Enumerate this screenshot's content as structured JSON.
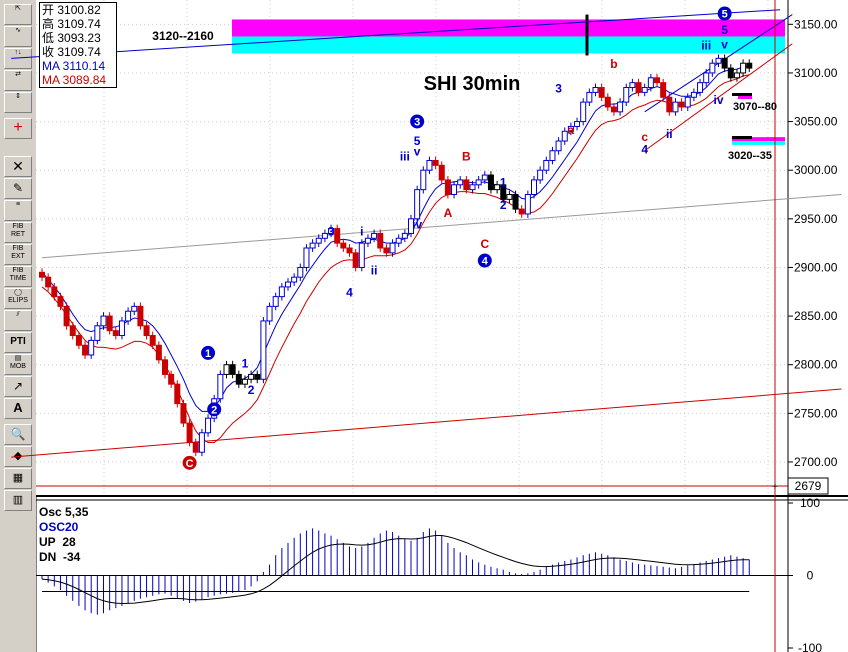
{
  "chart_data": {
    "type": "candlestick",
    "title": "SHI 30min",
    "price_axis": {
      "ticks": [
        2700,
        2750,
        2800,
        2850,
        2900,
        2950,
        3000,
        3050,
        3100,
        3150
      ],
      "tick_labels": [
        "2700.00",
        "2750.00",
        "2800.00",
        "2850.00",
        "2900.00",
        "2950.00",
        "3000.00",
        "3050.00",
        "3100.00",
        "3150.00"
      ],
      "ylim": [
        2665,
        3175
      ],
      "crosshair_label": "2679"
    },
    "ohlc_panel": {
      "open_label": "开",
      "open": "3100.82",
      "high_label": "高",
      "high": "3109.74",
      "low_label": "低",
      "low": "3093.23",
      "close_label": "收",
      "close": "3109.74",
      "ma1_label": "MA 3110.14",
      "ma2_label": "MA 3089.84"
    },
    "colors": {
      "up": "#0000cc",
      "down": "#cc0000",
      "highlight": "#000000",
      "ma_fast": "#0000cc",
      "ma_slow": "#cc0000",
      "osc": "#0000cc",
      "magenta": "#ff00ff",
      "cyan": "#00ffff"
    },
    "closes": [
      2890,
      2880,
      2870,
      2860,
      2840,
      2830,
      2820,
      2810,
      2825,
      2840,
      2850,
      2835,
      2830,
      2845,
      2855,
      2860,
      2840,
      2830,
      2820,
      2805,
      2790,
      2780,
      2760,
      2740,
      2720,
      2710,
      2730,
      2745,
      2765,
      2790,
      2800,
      2790,
      2780,
      2785,
      2790,
      2785,
      2845,
      2860,
      2870,
      2880,
      2885,
      2890,
      2900,
      2920,
      2925,
      2930,
      2935,
      2940,
      2925,
      2920,
      2915,
      2900,
      2925,
      2930,
      2935,
      2920,
      2915,
      2925,
      2930,
      2935,
      2950,
      2980,
      3000,
      3010,
      3005,
      2990,
      2975,
      2985,
      2990,
      2980,
      2985,
      2990,
      2995,
      2980,
      2985,
      2970,
      2975,
      2960,
      2955,
      2975,
      2990,
      3000,
      3010,
      3020,
      3030,
      3040,
      3045,
      3050,
      3070,
      3080,
      3085,
      3075,
      3065,
      3060,
      3070,
      3085,
      3090,
      3080,
      3085,
      3095,
      3090,
      3075,
      3060,
      3070,
      3065,
      3075,
      3080,
      3090,
      3100,
      3110,
      3115,
      3105,
      3095,
      3100,
      3110,
      3105
    ],
    "ma_fast": [
      2895,
      2888,
      2880,
      2872,
      2862,
      2852,
      2843,
      2836,
      2834,
      2836,
      2838,
      2838,
      2839,
      2841,
      2845,
      2848,
      2847,
      2845,
      2840,
      2832,
      2822,
      2810,
      2798,
      2785,
      2770,
      2758,
      2752,
      2752,
      2756,
      2765,
      2776,
      2782,
      2784,
      2786,
      2790,
      2797,
      2811,
      2826,
      2840,
      2852,
      2862,
      2872,
      2882,
      2893,
      2902,
      2911,
      2919,
      2926,
      2928,
      2929,
      2928,
      2925,
      2926,
      2928,
      2929,
      2927,
      2925,
      2925,
      2927,
      2930,
      2936,
      2947,
      2960,
      2972,
      2981,
      2986,
      2987,
      2988,
      2989,
      2988,
      2987,
      2987,
      2988,
      2986,
      2985,
      2982,
      2980,
      2976,
      2971,
      2970,
      2973,
      2978,
      2985,
      2993,
      3002,
      3011,
      3020,
      3029,
      3040,
      3051,
      3061,
      3066,
      3068,
      3068,
      3069,
      3073,
      3078,
      3080,
      3081,
      3084,
      3086,
      3084,
      3080,
      3078,
      3076,
      3076,
      3077,
      3080,
      3085,
      3092,
      3099,
      3102,
      3103,
      3104,
      3106,
      3107
    ],
    "ma_slow": [
      2880,
      2875,
      2868,
      2860,
      2851,
      2842,
      2833,
      2825,
      2820,
      2818,
      2818,
      2817,
      2816,
      2818,
      2821,
      2824,
      2824,
      2822,
      2818,
      2810,
      2800,
      2788,
      2775,
      2760,
      2745,
      2732,
      2724,
      2720,
      2720,
      2725,
      2733,
      2740,
      2745,
      2750,
      2756,
      2764,
      2777,
      2791,
      2805,
      2818,
      2830,
      2842,
      2853,
      2865,
      2875,
      2885,
      2893,
      2900,
      2904,
      2907,
      2908,
      2907,
      2908,
      2910,
      2912,
      2912,
      2912,
      2913,
      2915,
      2918,
      2924,
      2934,
      2946,
      2957,
      2966,
      2972,
      2975,
      2977,
      2978,
      2978,
      2977,
      2976,
      2976,
      2974,
      2972,
      2969,
      2966,
      2962,
      2958,
      2956,
      2957,
      2961,
      2968,
      2976,
      2985,
      2994,
      3003,
      3012,
      3022,
      3032,
      3041,
      3047,
      3050,
      3051,
      3053,
      3057,
      3062,
      3065,
      3067,
      3070,
      3072,
      3071,
      3069,
      3067,
      3066,
      3066,
      3067,
      3070,
      3074,
      3080,
      3086,
      3090,
      3092,
      3094,
      3097,
      3098
    ],
    "wave_labels": [
      {
        "text": "C",
        "price": 2695,
        "i": 24,
        "color": "#cc0000",
        "circled": true
      },
      {
        "text": "1",
        "price": 2808,
        "i": 27,
        "color": "#0000cc",
        "circled": true
      },
      {
        "text": "2",
        "price": 2750,
        "i": 28,
        "color": "#0000cc",
        "circled": true
      },
      {
        "text": "1",
        "price": 2797,
        "i": 33,
        "color": "#0000cc",
        "circled": false
      },
      {
        "text": "2",
        "price": 2770,
        "i": 34,
        "color": "#0000cc",
        "circled": false
      },
      {
        "text": "3",
        "price": 2933,
        "i": 47,
        "color": "#0000cc",
        "circled": false
      },
      {
        "text": "4",
        "price": 2870,
        "i": 50,
        "color": "#0000cc",
        "circled": false
      },
      {
        "text": "i",
        "price": 2933,
        "i": 52,
        "color": "#0000cc",
        "circled": false
      },
      {
        "text": "ii",
        "price": 2893,
        "i": 54,
        "color": "#0000cc",
        "circled": false
      },
      {
        "text": "iii",
        "price": 3010,
        "i": 59,
        "color": "#0000cc",
        "circled": false
      },
      {
        "text": "3",
        "price": 3046,
        "i": 61,
        "color": "#0000cc",
        "circled": true
      },
      {
        "text": "5",
        "price": 3026,
        "i": 61,
        "color": "#0000cc",
        "circled": false
      },
      {
        "text": "v",
        "price": 3015,
        "i": 61,
        "color": "#0000cc",
        "circled": false
      },
      {
        "text": "iv",
        "price": 2940,
        "i": 61,
        "color": "#0000cc",
        "circled": false
      },
      {
        "text": "A",
        "price": 2952,
        "i": 66,
        "color": "#cc0000",
        "circled": false
      },
      {
        "text": "B",
        "price": 3010,
        "i": 69,
        "color": "#cc0000",
        "circled": false
      },
      {
        "text": "1",
        "price": 2983,
        "i": 75,
        "color": "#0000cc",
        "circled": false
      },
      {
        "text": "2",
        "price": 2960,
        "i": 75,
        "color": "#0000cc",
        "circled": false
      },
      {
        "text": "C",
        "price": 2920,
        "i": 72,
        "color": "#cc0000",
        "circled": false
      },
      {
        "text": "4",
        "price": 2903,
        "i": 72,
        "color": "#0000cc",
        "circled": true
      },
      {
        "text": "3",
        "price": 3080,
        "i": 84,
        "color": "#0000cc",
        "circled": false
      },
      {
        "text": "a",
        "price": 3037,
        "i": 86,
        "color": "#cc0000",
        "circled": false
      },
      {
        "text": "b",
        "price": 3105,
        "i": 93,
        "color": "#cc0000",
        "circled": false
      },
      {
        "text": "c",
        "price": 3030,
        "i": 98,
        "color": "#cc0000",
        "circled": false
      },
      {
        "text": "4",
        "price": 3017,
        "i": 98,
        "color": "#0000cc",
        "circled": false
      },
      {
        "text": "ii",
        "price": 3033,
        "i": 102,
        "color": "#0000cc",
        "circled": false
      },
      {
        "text": "iii",
        "price": 3124,
        "i": 108,
        "color": "#0000cc",
        "circled": false
      },
      {
        "text": "iv",
        "price": 3068,
        "i": 110,
        "color": "#0000cc",
        "circled": false
      },
      {
        "text": "5",
        "price": 3157,
        "i": 111,
        "color": "#0000cc",
        "circled": true
      },
      {
        "text": "5",
        "price": 3140,
        "i": 111,
        "color": "#0000cc",
        "circled": false
      },
      {
        "text": "v",
        "price": 3125,
        "i": 111,
        "color": "#0000cc",
        "circled": false
      }
    ],
    "target_labels": [
      "3120--2160",
      "3070--80",
      "3020--35"
    ],
    "target_boxes": [
      {
        "price_top": 3155,
        "price_bottom": 3120,
        "colors": [
          "#ff00ff",
          "#00ffff"
        ]
      },
      {
        "price_top": 3034,
        "price_bottom": 3026,
        "colors": [
          "#ff00ff",
          "#00ffff"
        ]
      }
    ],
    "trend_lines": [
      {
        "name": "upper-blue",
        "color": "#0000cc",
        "from": {
          "i": -5,
          "price": 3115
        },
        "to": {
          "i": 120,
          "price": 3165
        }
      },
      {
        "name": "gray-channel",
        "color": "#999999",
        "from": {
          "i": 0,
          "price": 2910
        },
        "to": {
          "i": 130,
          "price": 2975
        }
      },
      {
        "name": "lower-red",
        "color": "#cc0000",
        "from": {
          "i": -5,
          "price": 2705
        },
        "to": {
          "i": 130,
          "price": 2775
        }
      },
      {
        "name": "wedge-upper",
        "color": "#0000cc",
        "from": {
          "i": 98,
          "price": 3060
        },
        "to": {
          "i": 122,
          "price": 3160
        }
      },
      {
        "name": "wedge-lower",
        "color": "#cc0000",
        "from": {
          "i": 98,
          "price": 3020
        },
        "to": {
          "i": 122,
          "price": 3130
        }
      }
    ],
    "osc": {
      "title": "Osc 5,35",
      "name": "OSC20",
      "up_label": "UP",
      "up": "28",
      "dn_label": "DN",
      "dn": "-34",
      "axis_ticks": [
        100,
        0,
        -100
      ],
      "axis_tick_labels": [
        "100",
        "0",
        "-100"
      ],
      "ylim": [
        -100,
        100
      ],
      "values": [
        -5,
        -10,
        -15,
        -20,
        -28,
        -35,
        -42,
        -48,
        -52,
        -54,
        -52,
        -48,
        -45,
        -42,
        -38,
        -35,
        -32,
        -30,
        -28,
        -26,
        -25,
        -28,
        -32,
        -35,
        -38,
        -36,
        -33,
        -30,
        -28,
        -26,
        -25,
        -24,
        -22,
        -20,
        -15,
        -8,
        5,
        15,
        28,
        38,
        45,
        52,
        58,
        62,
        65,
        62,
        58,
        55,
        50,
        45,
        40,
        38,
        40,
        45,
        52,
        58,
        62,
        60,
        55,
        50,
        48,
        52,
        60,
        65,
        62,
        55,
        45,
        38,
        32,
        28,
        22,
        18,
        15,
        12,
        10,
        8,
        5,
        3,
        2,
        3,
        5,
        8,
        12,
        15,
        18,
        20,
        22,
        25,
        28,
        30,
        32,
        30,
        28,
        25,
        22,
        20,
        18,
        16,
        15,
        14,
        13,
        12,
        11,
        10,
        12,
        14,
        16,
        18,
        20,
        22,
        24,
        26,
        28,
        26,
        24,
        22
      ]
    }
  }
}
